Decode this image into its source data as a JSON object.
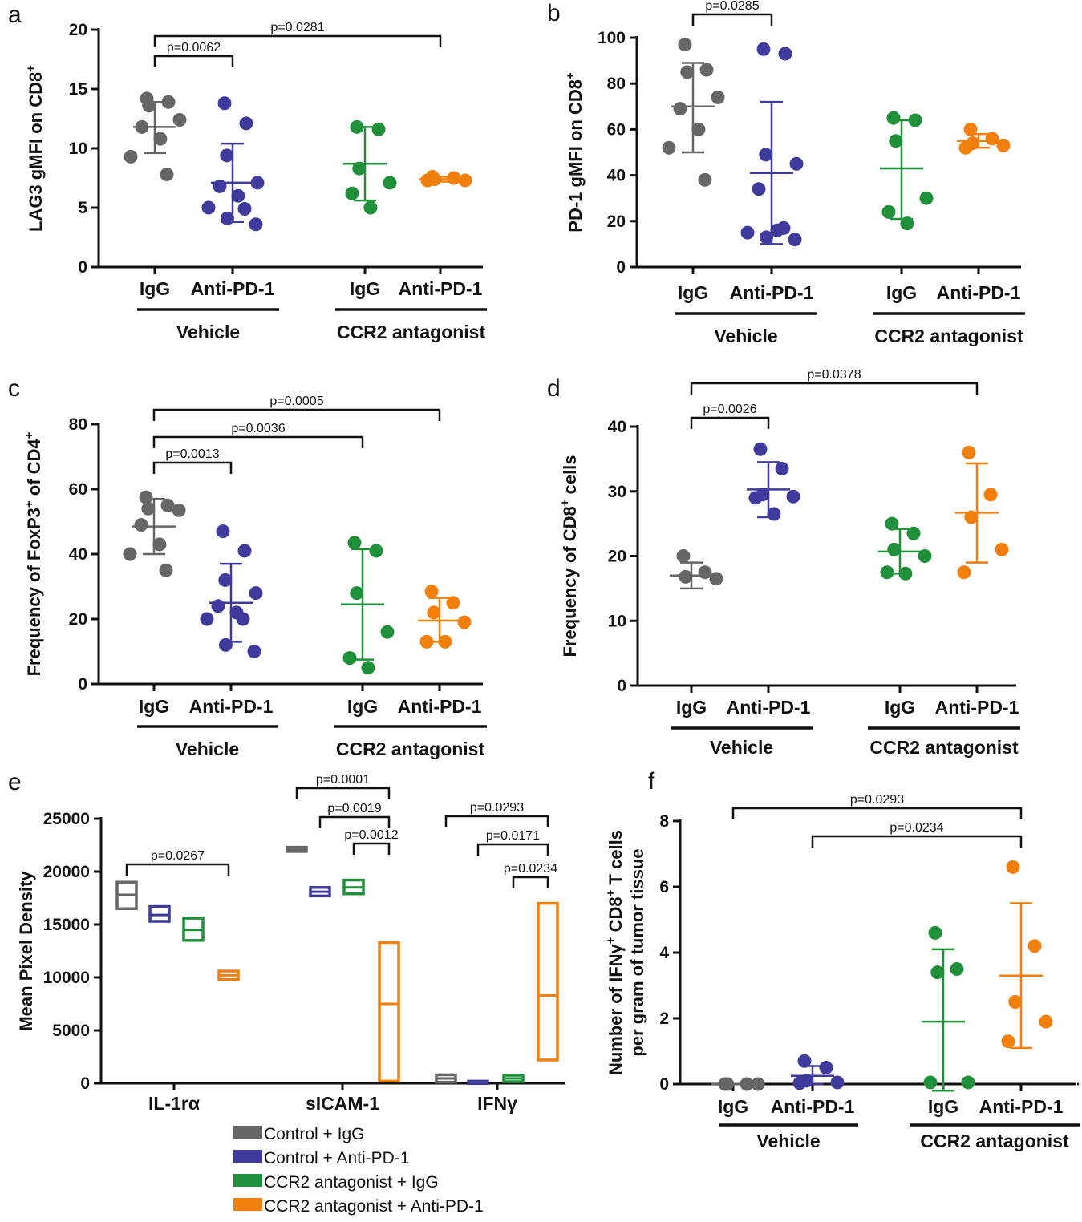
{
  "colors": {
    "IgG_vehicle": "#666666",
    "AntiPD1_vehicle": "#3f3b9c",
    "IgG_ccr2": "#1f8f3a",
    "AntiPD1_ccr2": "#f07f0c"
  },
  "chart_data": [
    {
      "panel": "a",
      "type": "scatter",
      "ylabel": "LAG3 gMFI on CD8",
      "ylabel_sup": "+",
      "ylim": [
        0,
        20
      ],
      "yticks": [
        0,
        5,
        10,
        15,
        20
      ],
      "ytick_labels": [
        "0",
        "5",
        "10",
        "15",
        "20"
      ],
      "categories": [
        "IgG",
        "Anti-PD-1",
        "IgG",
        "Anti-PD-1"
      ],
      "groups": [
        "Vehicle",
        "CCR2 antagonist"
      ],
      "series": [
        {
          "name": "Vehicle + IgG",
          "points": [
            14.2,
            13.9,
            13.6,
            12.4,
            11.8,
            10.8,
            9.3,
            7.8
          ],
          "mean": 11.8,
          "sd_low": 9.6,
          "sd_high": 13.9
        },
        {
          "name": "Vehicle + Anti-PD-1",
          "points": [
            13.8,
            12.1,
            9.4,
            7.1,
            6.8,
            6.0,
            5.0,
            4.9,
            4.1,
            3.6
          ],
          "mean": 7.1,
          "sd_low": 3.8,
          "sd_high": 10.4
        },
        {
          "name": "CCR2 antagonist + IgG",
          "points": [
            11.8,
            11.6,
            8.3,
            7.1,
            6.2,
            5.0
          ],
          "mean": 8.7,
          "sd_low": 5.6,
          "sd_high": 11.8
        },
        {
          "name": "CCR2 antagonist + Anti-PD-1",
          "points": [
            7.6,
            7.5,
            7.4,
            7.3,
            7.3
          ],
          "mean": 7.4,
          "sd_low": 7.2,
          "sd_high": 7.6
        }
      ],
      "pvalues": [
        {
          "label": "p=0.0281",
          "from": 0,
          "to": 3
        },
        {
          "label": "p=0.0062",
          "from": 0,
          "to": 1
        }
      ]
    },
    {
      "panel": "b",
      "type": "scatter",
      "ylabel": "PD-1 gMFI on CD8",
      "ylabel_sup": "+",
      "ylim": [
        0,
        100
      ],
      "yticks": [
        0,
        20,
        40,
        60,
        80,
        100
      ],
      "ytick_labels": [
        "0",
        "20",
        "40",
        "60",
        "80",
        "100"
      ],
      "categories": [
        "IgG",
        "Anti-PD-1",
        "IgG",
        "Anti-PD-1"
      ],
      "groups": [
        "Vehicle",
        "CCR2 antagonist"
      ],
      "series": [
        {
          "name": "Vehicle + IgG",
          "points": [
            97,
            86,
            85,
            74,
            69,
            60,
            52,
            38
          ],
          "mean": 70,
          "sd_low": 50,
          "sd_high": 89
        },
        {
          "name": "Vehicle + Anti-PD-1",
          "points": [
            95,
            93,
            49,
            45,
            34,
            16,
            15,
            17,
            13,
            12
          ],
          "mean": 41,
          "sd_low": 10,
          "sd_high": 72
        },
        {
          "name": "CCR2 antagonist + IgG",
          "points": [
            65,
            64,
            55,
            30,
            24,
            19
          ],
          "mean": 43,
          "sd_low": 21,
          "sd_high": 64
        },
        {
          "name": "CCR2 antagonist + Anti-PD-1",
          "points": [
            60,
            56,
            54,
            53,
            52
          ],
          "mean": 55,
          "sd_low": 52,
          "sd_high": 58
        }
      ],
      "pvalues": [
        {
          "label": "p=0.0285",
          "from": 0,
          "to": 1
        }
      ]
    },
    {
      "panel": "c",
      "type": "scatter",
      "ylabel": "Frequency of FoxP3",
      "ylabel_sup": "+",
      "ylabel_rest": " of CD4",
      "ylabel_sup2": "+",
      "ylim": [
        0,
        80
      ],
      "yticks": [
        0,
        20,
        40,
        60,
        80
      ],
      "ytick_labels": [
        "0",
        "20",
        "40",
        "60",
        "80"
      ],
      "categories": [
        "IgG",
        "Anti-PD-1",
        "IgG",
        "Anti-PD-1"
      ],
      "groups": [
        "Vehicle",
        "CCR2 antagonist"
      ],
      "series": [
        {
          "name": "Vehicle + IgG",
          "points": [
            57.5,
            55,
            54,
            53.5,
            49,
            43,
            40,
            35
          ],
          "mean": 48.5,
          "sd_low": 40,
          "sd_high": 57
        },
        {
          "name": "Vehicle + Anti-PD-1",
          "points": [
            47,
            41,
            32,
            28,
            24,
            22,
            20,
            20,
            12,
            10
          ],
          "mean": 25,
          "sd_low": 13,
          "sd_high": 37
        },
        {
          "name": "CCR2 antagonist + IgG",
          "points": [
            43.5,
            41,
            28,
            16,
            8,
            5
          ],
          "mean": 24.5,
          "sd_low": 7.5,
          "sd_high": 41.5
        },
        {
          "name": "CCR2 antagonist + Anti-PD-1",
          "points": [
            28.5,
            25,
            22,
            19,
            13,
            13
          ],
          "mean": 19.5,
          "sd_low": 13,
          "sd_high": 26.5
        }
      ],
      "pvalues": [
        {
          "label": "p=0.0005",
          "from": 0,
          "to": 3
        },
        {
          "label": "p=0.0036",
          "from": 0,
          "to": 2
        },
        {
          "label": "p=0.0013",
          "from": 0,
          "to": 1
        }
      ]
    },
    {
      "panel": "d",
      "type": "scatter",
      "ylabel": "Frequency of CD8",
      "ylabel_sup": "+",
      "ylabel_rest": " cells",
      "ylim": [
        0,
        40
      ],
      "yticks": [
        0,
        10,
        20,
        30,
        40
      ],
      "ytick_labels": [
        "0",
        "10",
        "20",
        "30",
        "40"
      ],
      "categories": [
        "IgG",
        "Anti-PD-1",
        "IgG",
        "Anti-PD-1"
      ],
      "groups": [
        "Vehicle",
        "CCR2 antagonist"
      ],
      "series": [
        {
          "name": "Vehicle + IgG",
          "points": [
            20,
            17.5,
            16.8,
            16.5
          ],
          "mean": 17,
          "sd_low": 15,
          "sd_high": 19
        },
        {
          "name": "Vehicle + Anti-PD-1",
          "points": [
            36.5,
            33.5,
            29.5,
            29.2,
            29.0,
            26.5
          ],
          "mean": 30.3,
          "sd_low": 26,
          "sd_high": 34.5
        },
        {
          "name": "CCR2 antagonist + IgG",
          "points": [
            25,
            23.5,
            21,
            20,
            17.5,
            17.3
          ],
          "mean": 20.7,
          "sd_low": 17.3,
          "sd_high": 24.2
        },
        {
          "name": "CCR2 antagonist + Anti-PD-1",
          "points": [
            36,
            29.5,
            26,
            21,
            17.5
          ],
          "mean": 26.7,
          "sd_low": 19,
          "sd_high": 34.3
        }
      ],
      "pvalues": [
        {
          "label": "p=0.0378",
          "from": 0,
          "to": 3
        },
        {
          "label": "p=0.0026",
          "from": 0,
          "to": 1
        }
      ]
    },
    {
      "panel": "e",
      "type": "floating-bar",
      "ylabel": "Mean Pixel Density",
      "ylim": [
        0,
        25000
      ],
      "yticks": [
        0,
        5000,
        10000,
        15000,
        20000,
        25000
      ],
      "ytick_labels": [
        "0",
        "5000",
        "10000",
        "15000",
        "20000",
        "25000"
      ],
      "categories": [
        "IL-1rα",
        "sICAM-1",
        "IFNγ"
      ],
      "series": [
        {
          "name": "Control + IgG",
          "ranges": [
            [
              16500,
              19000
            ],
            [
              21900,
              22300
            ],
            [
              100,
              800
            ]
          ],
          "means": [
            17800,
            22100,
            450
          ]
        },
        {
          "name": "Control + Anti-PD-1",
          "ranges": [
            [
              15300,
              16700
            ],
            [
              17700,
              18500
            ],
            [
              0,
              200
            ]
          ],
          "means": [
            15900,
            18100,
            100
          ]
        },
        {
          "name": "CCR2 antagonist + IgG",
          "ranges": [
            [
              13500,
              15600
            ],
            [
              17900,
              19200
            ],
            [
              150,
              750
            ]
          ],
          "means": [
            14500,
            18500,
            450
          ]
        },
        {
          "name": "CCR2 antagonist + Anti-PD-1",
          "ranges": [
            [
              9800,
              10600
            ],
            [
              200,
              13300
            ],
            [
              2200,
              17000
            ]
          ],
          "means": [
            10200,
            7500,
            8300
          ]
        }
      ],
      "pvalues": [
        {
          "label": "p=0.0267",
          "cat": 0,
          "from": 0,
          "to": 3
        },
        {
          "label": "p=0.0001",
          "cat": 1,
          "from": 0,
          "to": 3
        },
        {
          "label": "p=0.0019",
          "cat": 1,
          "from": 1,
          "to": 3
        },
        {
          "label": "p=0.0012",
          "cat": 1,
          "from": 2,
          "to": 3
        },
        {
          "label": "p=0.0293",
          "cat": 2,
          "from": 0,
          "to": 3
        },
        {
          "label": "p=0.0171",
          "cat": 2,
          "from": 1,
          "to": 3
        },
        {
          "label": "p=0.0234",
          "cat": 2,
          "from": 2,
          "to": 3
        }
      ],
      "legend": [
        "Control + IgG",
        "Control + Anti-PD-1",
        "CCR2 antagonist + IgG",
        "CCR2 antagonist + Anti-PD-1"
      ]
    },
    {
      "panel": "f",
      "type": "scatter",
      "ylabel": "Number of IFNγ",
      "ylabel_sup": "+",
      "ylabel_rest": " CD8",
      "ylabel_sup2": "+",
      "ylabel_rest2": " T cells",
      "ylabel_line2": "per gram of tumor tissue",
      "ylim": [
        0,
        8
      ],
      "yticks": [
        0,
        2,
        4,
        6,
        8
      ],
      "ytick_labels": [
        "0",
        "2",
        "4",
        "6",
        "8"
      ],
      "categories": [
        "IgG",
        "Anti-PD-1",
        "IgG",
        "Anti-PD-1"
      ],
      "groups": [
        "Vehicle",
        "CCR2 antagonist"
      ],
      "series": [
        {
          "name": "Vehicle + IgG",
          "points": [
            0,
            0,
            0,
            0
          ],
          "mean": 0,
          "sd_low": 0,
          "sd_high": 0
        },
        {
          "name": "Vehicle + Anti-PD-1",
          "points": [
            0.7,
            0.5,
            0.1,
            0.05,
            0.03
          ],
          "mean": 0.25,
          "sd_low": 0,
          "sd_high": 0.55
        },
        {
          "name": "CCR2 antagonist + IgG",
          "points": [
            4.6,
            3.5,
            3.4,
            0.05,
            0.05
          ],
          "mean": 1.9,
          "sd_low": -0.2,
          "sd_high": 4.1
        },
        {
          "name": "CCR2 antagonist + Anti-PD-1",
          "points": [
            6.6,
            4.2,
            2.5,
            1.9,
            1.3
          ],
          "mean": 3.3,
          "sd_low": 1.1,
          "sd_high": 5.5
        }
      ],
      "pvalues": [
        {
          "label": "p=0.0293",
          "from": 0,
          "to": 3
        },
        {
          "label": "p=0.0234",
          "from": 1,
          "to": 3
        }
      ]
    }
  ]
}
